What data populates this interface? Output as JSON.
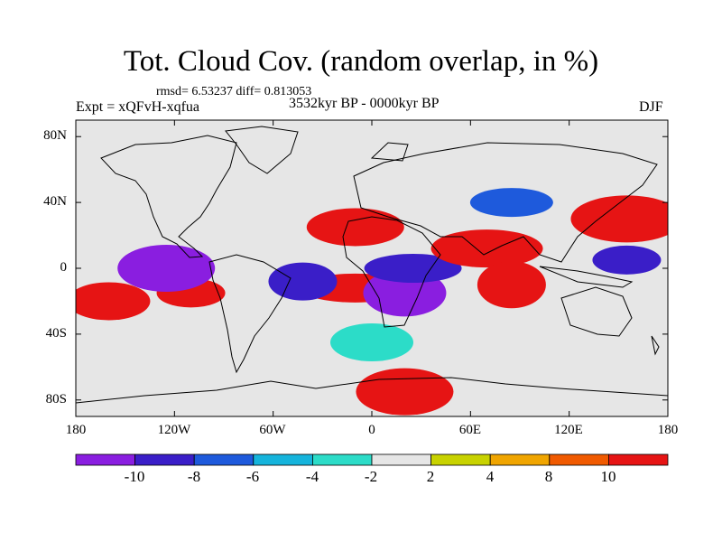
{
  "title": "Tot. Cloud Cov. (random overlap, in %)",
  "stats": "rmsd= 6.53237  diff= 0.813053",
  "period": "3532kyr BP - 0000kyr BP",
  "experiment": "Expt = xQFvH-xqfua",
  "season": "DJF",
  "lat_ticks": [
    "80N",
    "40N",
    "0",
    "40S",
    "80S"
  ],
  "lon_ticks": [
    "180",
    "120W",
    "60W",
    "0",
    "60E",
    "120E",
    "180"
  ],
  "colorbar": {
    "labels": [
      "-10",
      "-8",
      "-6",
      "-4",
      "-2",
      "2",
      "4",
      "8",
      "10"
    ],
    "colors": [
      "#8a1ee0",
      "#3a1ec8",
      "#1e5adc",
      "#15b4dc",
      "#2cdcc8",
      "#e6e6e6",
      "#c8d200",
      "#f0a500",
      "#f05a00",
      "#e61414"
    ]
  },
  "chart_data": {
    "type": "map",
    "title": "Tot. Cloud Cov. (random overlap, in %)",
    "variable": "Total cloud cover difference (%)",
    "xlim": [
      -180,
      180
    ],
    "ylim": [
      -90,
      90
    ],
    "levels": [
      -10,
      -8,
      -6,
      -4,
      -2,
      2,
      4,
      8,
      10
    ],
    "features": [
      {
        "name": "tropical-pacific-south-positive",
        "lon": -110,
        "lat": -15,
        "value": 12
      },
      {
        "name": "south-pacific-positive",
        "lon": -160,
        "lat": -20,
        "value": 10
      },
      {
        "name": "equatorial-pacific-negative",
        "lon": -125,
        "lat": 0,
        "value": -11
      },
      {
        "name": "south-atlantic-positive",
        "lon": -10,
        "lat": -12,
        "value": 12
      },
      {
        "name": "atlantic-negative",
        "lon": -42,
        "lat": -8,
        "value": -9
      },
      {
        "name": "southern-africa-negative",
        "lon": 20,
        "lat": -15,
        "value": -11
      },
      {
        "name": "central-africa-negative",
        "lon": 25,
        "lat": 0,
        "value": -9
      },
      {
        "name": "arabian-sea-positive",
        "lon": 70,
        "lat": 12,
        "value": 12
      },
      {
        "name": "indian-ocean-positive",
        "lon": 85,
        "lat": -10,
        "value": 10
      },
      {
        "name": "asia-negative",
        "lon": 85,
        "lat": 40,
        "value": -8
      },
      {
        "name": "north-atlantic-positive",
        "lon": -10,
        "lat": 25,
        "value": 10
      },
      {
        "name": "north-pacific-positive",
        "lon": 155,
        "lat": 30,
        "value": 10
      },
      {
        "name": "west-pacific-negative",
        "lon": 155,
        "lat": 5,
        "value": -10
      },
      {
        "name": "southern-ocean-band",
        "lon": 0,
        "lat": -45,
        "value": -4
      },
      {
        "name": "antarctic-coast-positive",
        "lon": 20,
        "lat": -75,
        "value": 10
      }
    ]
  }
}
